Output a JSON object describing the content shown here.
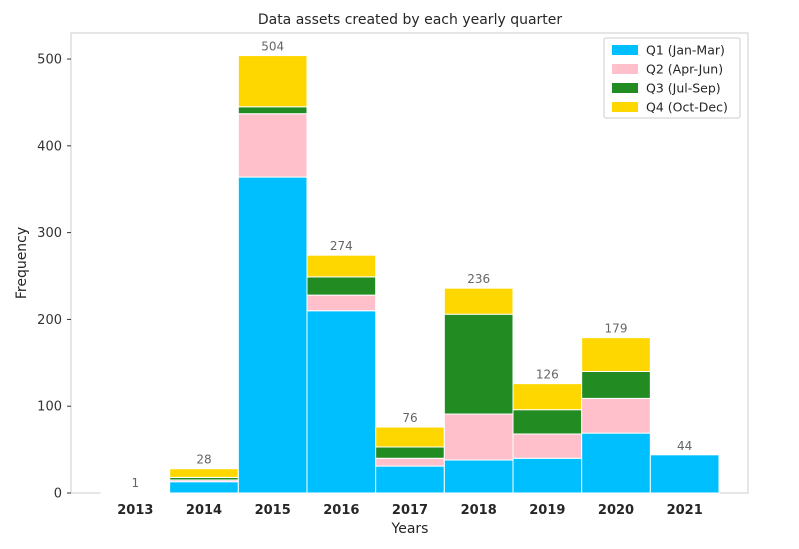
{
  "chart_data": {
    "type": "bar",
    "stacked": true,
    "title": "Data assets created by each yearly quarter",
    "xlabel": "Years",
    "ylabel": "Frequency",
    "ylim": [
      0,
      530
    ],
    "yticks": [
      0,
      100,
      200,
      300,
      400,
      500
    ],
    "categories": [
      "2013",
      "2014",
      "2015",
      "2016",
      "2017",
      "2018",
      "2019",
      "2020",
      "2021"
    ],
    "series": [
      {
        "name": "Q1 (Jan-Mar)",
        "color": "#00BFFF",
        "values": [
          0,
          13,
          364,
          210,
          31,
          38,
          40,
          69,
          44
        ]
      },
      {
        "name": "Q2 (Apr-Jun)",
        "color": "#FFC0CB",
        "values": [
          0,
          2,
          73,
          18,
          9,
          53,
          28,
          40,
          0
        ]
      },
      {
        "name": "Q3 (Jul-Sep)",
        "color": "#228B22",
        "values": [
          0,
          3,
          8,
          21,
          13,
          115,
          28,
          31,
          0
        ]
      },
      {
        "name": "Q4 (Oct-Dec)",
        "color": "#FFD700",
        "values": [
          1,
          10,
          59,
          25,
          23,
          30,
          30,
          39,
          0
        ]
      }
    ],
    "totals": [
      "1",
      "28",
      "504",
      "274",
      "76",
      "236",
      "126",
      "179",
      "44"
    ],
    "legend_position": "top-right",
    "grid": false
  }
}
